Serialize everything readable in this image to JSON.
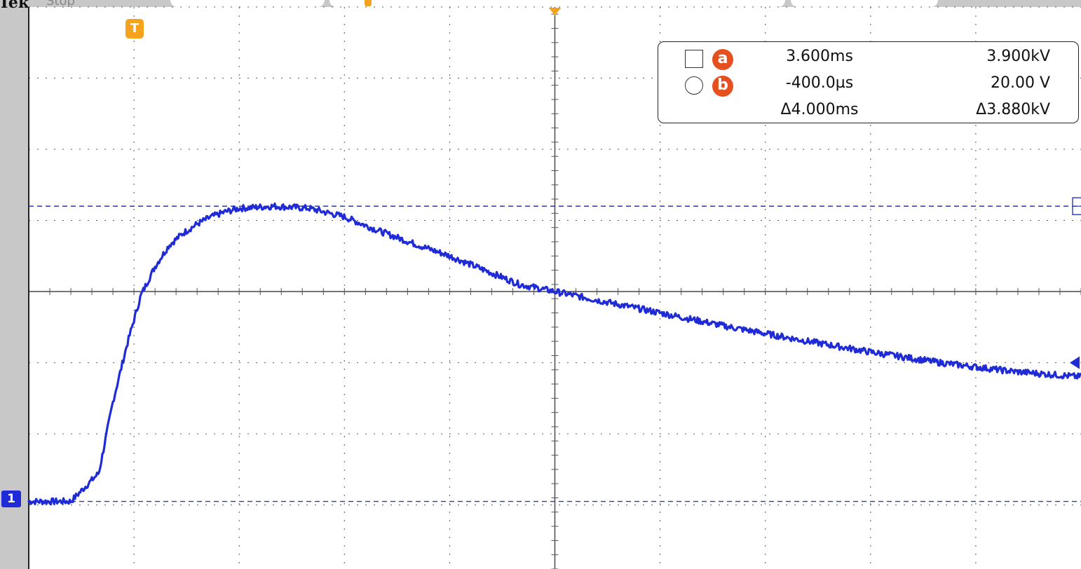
{
  "header": {
    "brand": "Tek",
    "run_state": "Stop"
  },
  "markers": {
    "trigger_label": "T",
    "channel_label": "1"
  },
  "cursor_readout": {
    "cursor_a": {
      "symbol": "square-icon",
      "badge": "a",
      "time": "3.600ms",
      "value": "3.900kV"
    },
    "cursor_b": {
      "symbol": "circle-icon",
      "badge": "b",
      "time": "-400.0µs",
      "value": "20.00 V"
    },
    "delta": {
      "time": "Δ4.000ms",
      "value": "Δ3.880kV"
    }
  },
  "colors": {
    "trace": "#1f2bd6",
    "cursor": "#2a3bb8",
    "trigger": "#f5a21d",
    "badge": "#e6501e",
    "graticule": "#555555"
  },
  "chart_data": {
    "type": "line",
    "xlabel": "",
    "ylabel": "",
    "xlim": [
      -1,
      14
    ],
    "ylim": [
      -3.9,
      4
    ],
    "grid": true,
    "series": [
      {
        "x": [
          -1.0,
          -0.4,
          0.0,
          0.2,
          0.4,
          0.6,
          0.8,
          1.0,
          1.2,
          1.4,
          1.6,
          1.8,
          2.0,
          2.5,
          3.0,
          3.5,
          4.0,
          4.5,
          5.0,
          6.0,
          7.0,
          8.0,
          9.0,
          10.0,
          11.0,
          12.0,
          13.0,
          14.0
        ],
        "y": [
          -2.95,
          -2.95,
          -2.55,
          -1.55,
          -0.75,
          -0.05,
          0.35,
          0.65,
          0.82,
          0.95,
          1.05,
          1.12,
          1.17,
          1.2,
          1.17,
          1.05,
          0.85,
          0.67,
          0.5,
          0.1,
          -0.1,
          -0.3,
          -0.5,
          -0.68,
          -0.85,
          -1.0,
          -1.12,
          -1.2
        ]
      }
    ]
  }
}
